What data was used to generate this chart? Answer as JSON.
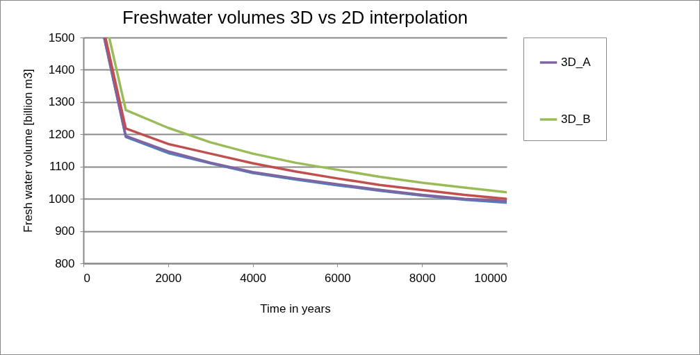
{
  "chart_data": {
    "type": "line",
    "title": "Freshwater volumes 3D vs 2D interpolation",
    "xlabel": "Time in years",
    "ylabel": "Fresh water volume [billion m3]",
    "xlim": [
      0,
      10000
    ],
    "xticks": [
      0,
      2000,
      4000,
      6000,
      8000,
      10000
    ],
    "ylim": [
      800,
      1500
    ],
    "yticks": [
      800,
      900,
      1000,
      1100,
      1200,
      1300,
      1400,
      1500
    ],
    "grid": "y",
    "legend": "right",
    "marker": "none",
    "line_style": "solid",
    "series": [
      {
        "color": "#4f81bd",
        "x": [
          490,
          1000,
          2000,
          3000,
          4000,
          5000,
          6000,
          7000,
          8000,
          9000,
          10000
        ],
        "values": [
          1500,
          1192,
          1142,
          1110,
          1080,
          1060,
          1042,
          1025,
          1010,
          997,
          988
        ]
      },
      {
        "name": "3D_A",
        "color": "#8064a2",
        "x": [
          490,
          1000,
          2000,
          3000,
          4000,
          5000,
          6000,
          7000,
          8000,
          9000,
          10000
        ],
        "values": [
          1500,
          1195,
          1147,
          1112,
          1083,
          1063,
          1045,
          1028,
          1012,
          1000,
          993
        ]
      },
      {
        "color": "#c0504d",
        "x": [
          520,
          1000,
          2000,
          3000,
          4000,
          5000,
          6000,
          7000,
          8000,
          9000,
          10000
        ],
        "values": [
          1500,
          1218,
          1170,
          1140,
          1110,
          1085,
          1063,
          1043,
          1027,
          1012,
          1000
        ]
      },
      {
        "name": "3D_B",
        "color": "#9bbb59",
        "x": [
          610,
          1000,
          2000,
          3000,
          4000,
          5000,
          6000,
          7000,
          8000,
          9000,
          10000
        ],
        "values": [
          1500,
          1275,
          1220,
          1175,
          1140,
          1112,
          1090,
          1068,
          1050,
          1035,
          1020
        ]
      }
    ]
  }
}
